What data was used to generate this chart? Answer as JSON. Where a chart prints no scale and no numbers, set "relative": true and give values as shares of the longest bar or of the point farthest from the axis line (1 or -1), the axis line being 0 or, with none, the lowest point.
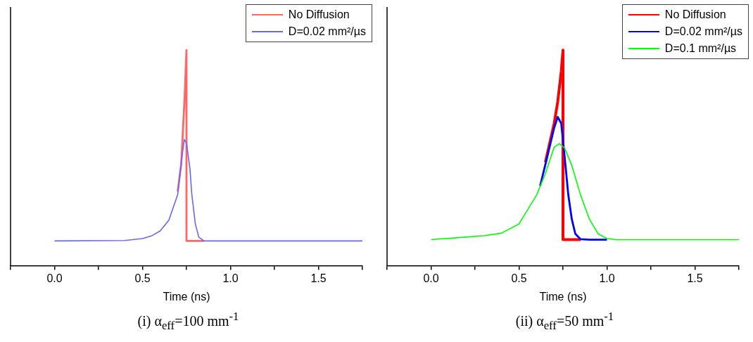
{
  "chart_data": [
    {
      "type": "line",
      "relative": true,
      "xlabel": "Time (ns)",
      "annotations": [
        "(i) α$_{eff}$=100 mm$^{-1}$"
      ],
      "legend": "top right",
      "xlim": [
        -0.25,
        1.75
      ],
      "xticks": [
        {
          "value": -0.25,
          "label": null
        },
        {
          "value": 0,
          "label": "0.0"
        },
        {
          "value": 0.25,
          "label": null
        },
        {
          "value": 0.5,
          "label": "0.5"
        },
        {
          "value": 0.75,
          "label": null
        },
        {
          "value": 1,
          "label": "1.0"
        },
        {
          "value": 1.25,
          "label": null
        },
        {
          "value": 1.5,
          "label": "1.5"
        },
        {
          "value": 1.75,
          "label": null
        }
      ],
      "series": [
        {
          "name": "No Diffusion",
          "color": "#ff6666",
          "x": [
            0.7,
            0.72,
            0.74,
            0.75,
            0.75,
            0.85
          ],
          "values": [
            0.344,
            0.47,
            0.79,
            1,
            0.115,
            0.115
          ]
        },
        {
          "name": "D=0.02 mm²/µs",
          "color": "#6666ff",
          "x": [
            0,
            0.4,
            0.5,
            0.55,
            0.6,
            0.65,
            0.7,
            0.72,
            0.7375,
            0.75,
            0.77,
            0.78,
            0.8,
            0.82,
            0.85,
            1.75
          ],
          "values": [
            0.115,
            0.117,
            0.126,
            0.138,
            0.161,
            0.212,
            0.33,
            0.48,
            0.585,
            0.57,
            0.447,
            0.333,
            0.195,
            0.132,
            0.115,
            0.115
          ]
        }
      ]
    },
    {
      "type": "line",
      "relative": true,
      "xlabel": "Time (ns)",
      "annotations": [
        "(ii) α$_{eff}$=50 mm$^{-1}$"
      ],
      "legend": "top right",
      "xlim": [
        -0.25,
        1.75
      ],
      "xticks": [
        {
          "value": -0.25,
          "label": null
        },
        {
          "value": 0,
          "label": "0.0"
        },
        {
          "value": 0.25,
          "label": null
        },
        {
          "value": 0.5,
          "label": "0.5"
        },
        {
          "value": 0.75,
          "label": null
        },
        {
          "value": 1,
          "label": "1.0"
        },
        {
          "value": 1.25,
          "label": null
        },
        {
          "value": 1.5,
          "label": "1.5"
        },
        {
          "value": 1.75,
          "label": null
        }
      ],
      "series": [
        {
          "name": "No Diffusion",
          "color": "#ff0000",
          "x": [
            0.65,
            0.7,
            0.72,
            0.74,
            0.75,
            0.75,
            0.85
          ],
          "values": [
            0.48,
            0.66,
            0.76,
            0.9,
            1,
            0.121,
            0.121
          ]
        },
        {
          "name": "D=0.02 mm²/µs",
          "color": "#0000ff",
          "x": [
            0.62,
            0.65,
            0.7,
            0.72,
            0.74,
            0.76,
            0.78,
            0.8,
            0.82,
            0.85,
            0.9,
            1
          ],
          "values": [
            0.37,
            0.47,
            0.64,
            0.69,
            0.66,
            0.5,
            0.33,
            0.216,
            0.148,
            0.123,
            0.121,
            0.121
          ]
        },
        {
          "name": "D=0.1 mm²/µs",
          "color": "#00ff00",
          "x": [
            0,
            0.2,
            0.3,
            0.4,
            0.5,
            0.6,
            0.65,
            0.7,
            0.73,
            0.76,
            0.8,
            0.85,
            0.9,
            0.95,
            1,
            1.05,
            1.75
          ],
          "values": [
            0.121,
            0.133,
            0.139,
            0.151,
            0.194,
            0.328,
            0.427,
            0.55,
            0.566,
            0.545,
            0.465,
            0.328,
            0.216,
            0.148,
            0.126,
            0.121,
            0.121
          ]
        }
      ]
    }
  ]
}
